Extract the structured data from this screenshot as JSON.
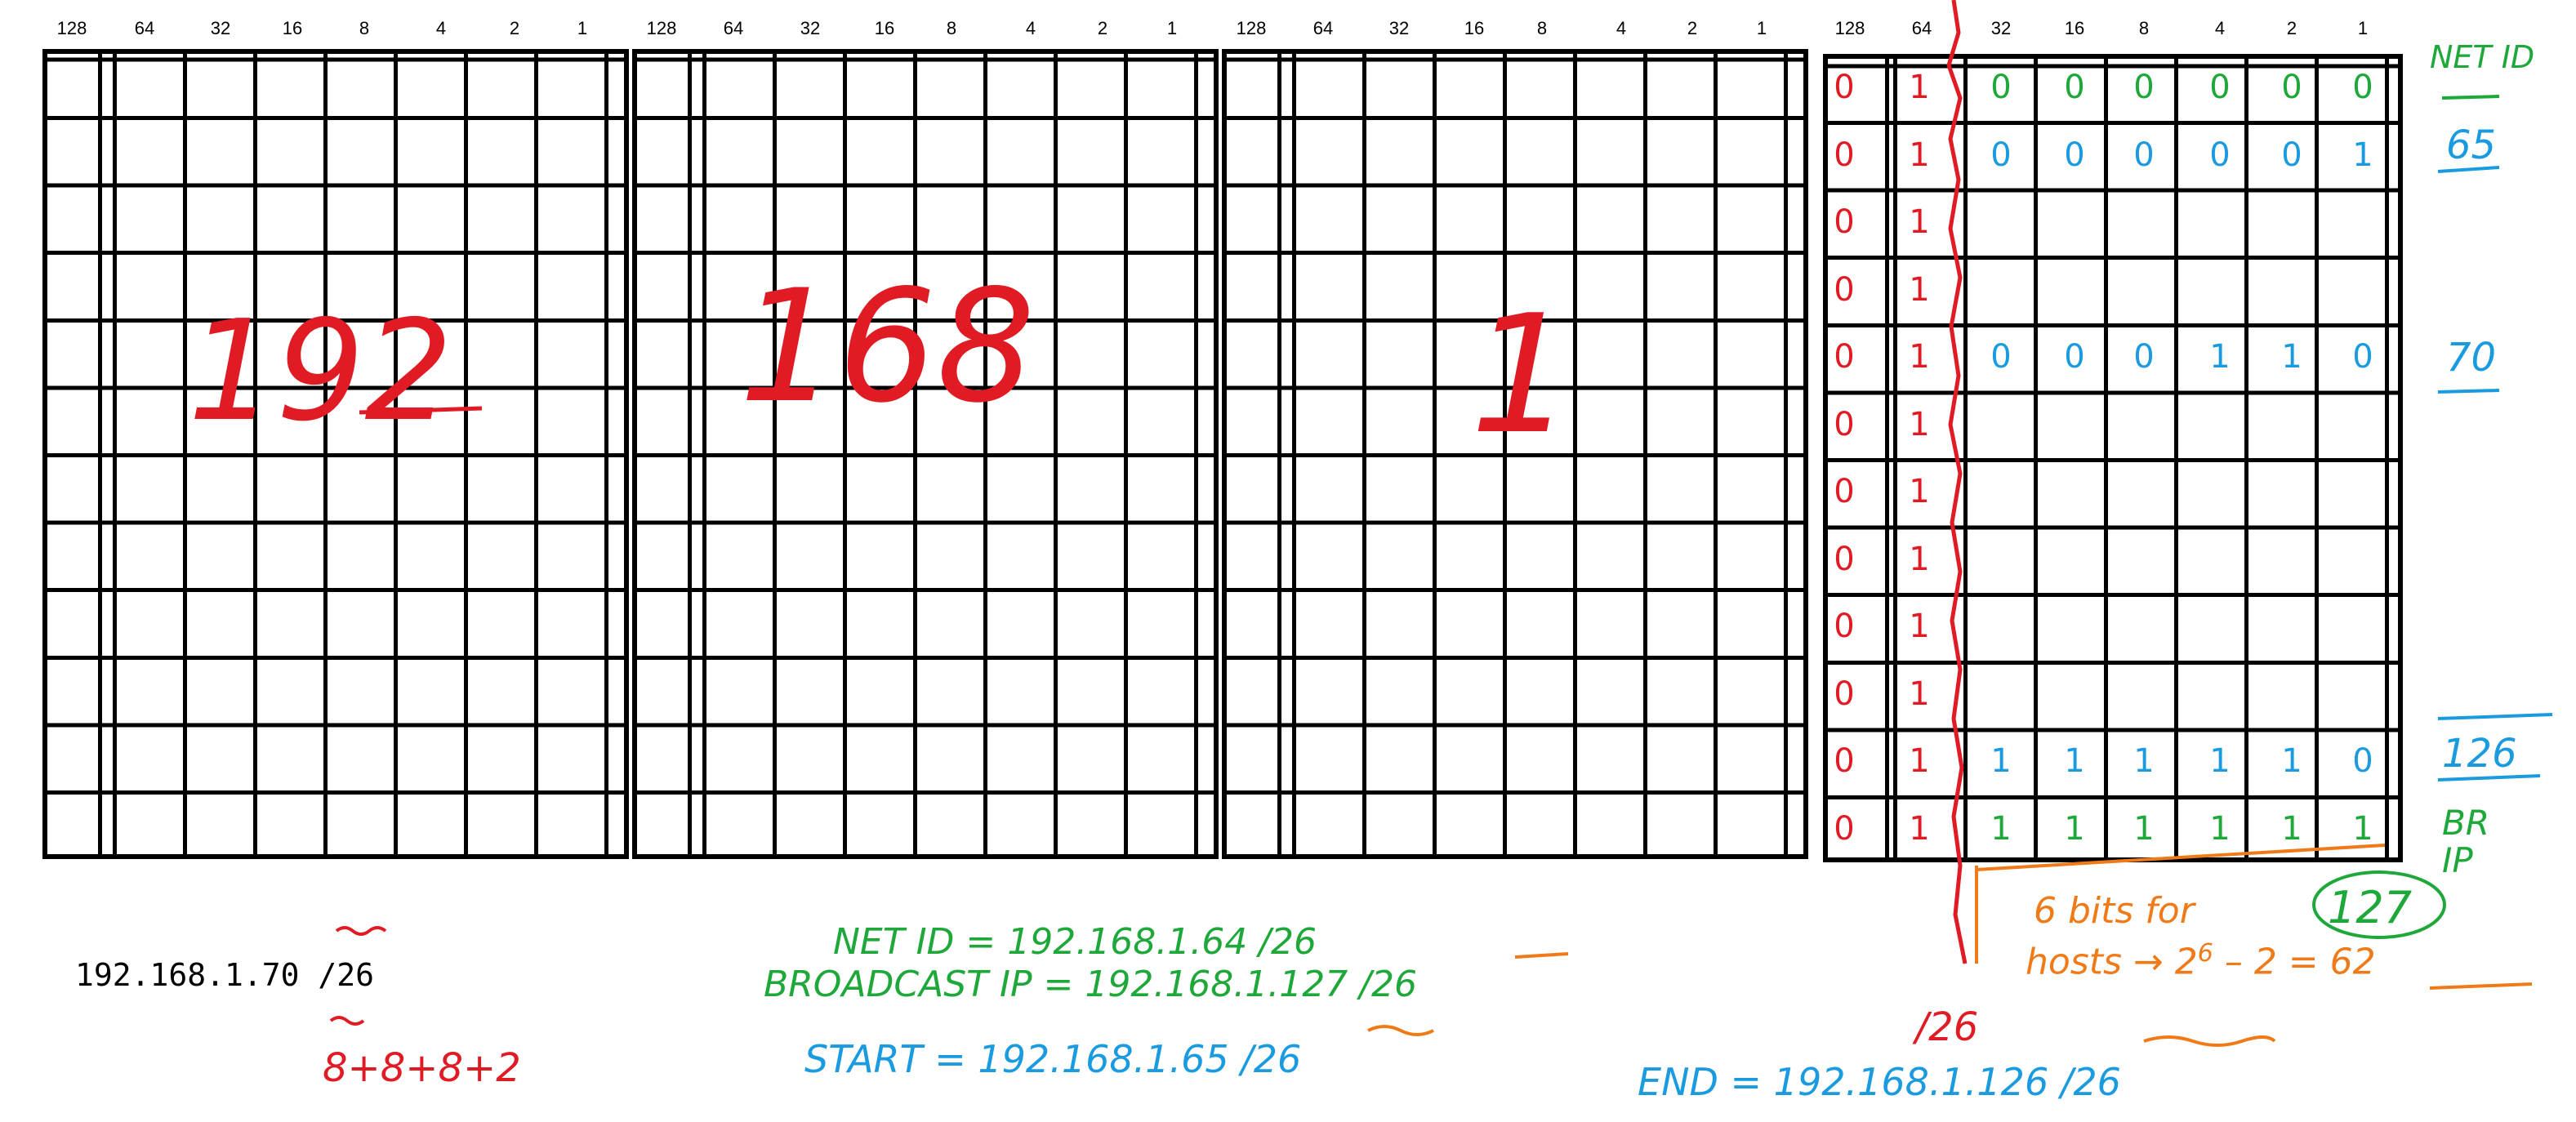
{
  "bit_headers": [
    "128",
    "64",
    "32",
    "16",
    "8",
    "4",
    "2",
    "1"
  ],
  "octets": [
    {
      "value": "192"
    },
    {
      "value": "168"
    },
    {
      "value": "1"
    },
    {
      "value": ""
    }
  ],
  "fourth_octet": {
    "fixed_bits_col128": [
      "0",
      "0",
      "0",
      "0",
      "0",
      "0",
      "0",
      "0",
      "0",
      "0",
      "0",
      "0"
    ],
    "fixed_bits_col64": [
      "1",
      "1",
      "1",
      "1",
      "1",
      "1",
      "1",
      "1",
      "1",
      "1",
      "1",
      "1"
    ],
    "rows": [
      {
        "row": 0,
        "bits": [
          "0",
          "0",
          "0",
          "0",
          "0",
          "0"
        ],
        "color": "green",
        "label": "NET ID"
      },
      {
        "row": 1,
        "bits": [
          "0",
          "0",
          "0",
          "0",
          "0",
          "1"
        ],
        "color": "blue",
        "label": "65"
      },
      {
        "row": 4,
        "bits": [
          "0",
          "0",
          "0",
          "1",
          "1",
          "0"
        ],
        "color": "blue",
        "label": "70"
      },
      {
        "row": 10,
        "bits": [
          "1",
          "1",
          "1",
          "1",
          "1",
          "0"
        ],
        "color": "blue",
        "label": "126"
      },
      {
        "row": 11,
        "bits": [
          "1",
          "1",
          "1",
          "1",
          "1",
          "1"
        ],
        "color": "green",
        "label": "BR IP"
      }
    ]
  },
  "annotations": {
    "ip_address": "192.168.1.70 /26",
    "prefix_sum": "8+8+8+2",
    "net_id": "NET ID = 192.168.1.64 /26",
    "broadcast": "BROADCAST IP = 192.168.1.127 /26",
    "start": "START = 192.168.1.65 /26",
    "end": "END = 192.168.1.126 /26",
    "prefix_mark": "/26",
    "host_bits": "6 bits for",
    "hosts_formula_prefix": "hosts → 2",
    "hosts_exp": "6",
    "hosts_formula_suffix": " – 2 = 62",
    "broadcast_value": "127"
  },
  "colors": {
    "red": "#e01b24",
    "green": "#1ea83a",
    "blue": "#1a9be0",
    "orange": "#f07a18"
  }
}
